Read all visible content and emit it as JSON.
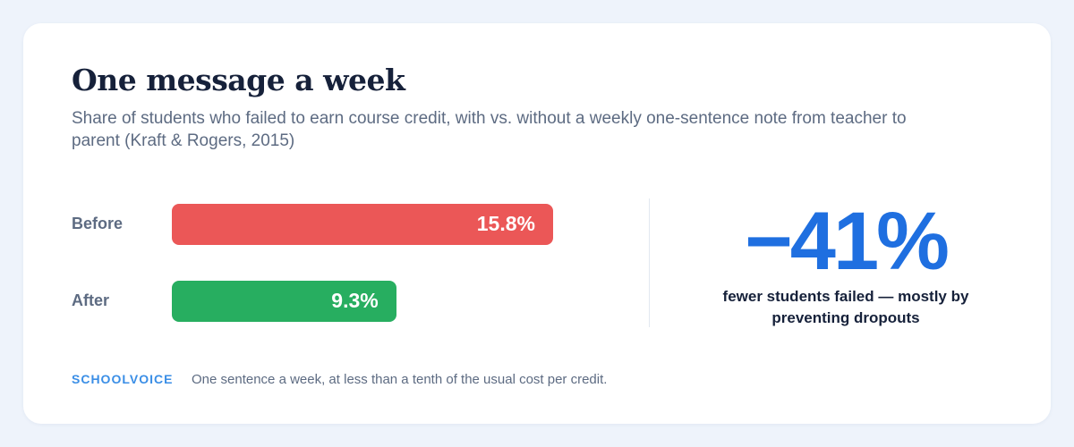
{
  "chart_data": {
    "type": "bar",
    "title": "One message a week",
    "subtitle": "Share of students who failed to earn course credit, with vs. without a weekly one-sentence note from teacher to parent (Kraft & Rogers, 2015)",
    "categories": [
      "Before",
      "After"
    ],
    "values": [
      15.8,
      9.3
    ],
    "value_labels": [
      "15.8%",
      "9.3%"
    ],
    "colors": [
      "#eb5757",
      "#27ae60"
    ]
  },
  "callout": {
    "stat": "−41%",
    "text": "fewer students failed — mostly by preventing dropouts"
  },
  "footer": {
    "brand": "SCHOOLVOICE",
    "note": "One sentence a week, at less than a tenth of the usual cost per credit."
  }
}
